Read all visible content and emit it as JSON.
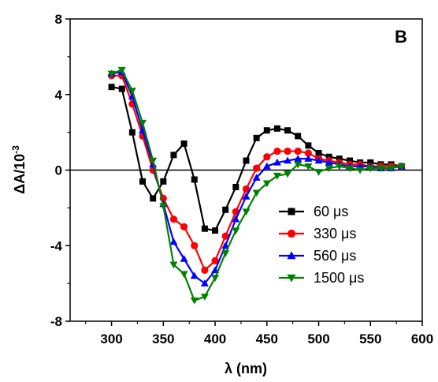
{
  "chart_data": {
    "type": "line",
    "panel_label": "B",
    "xlabel": "λ (nm)",
    "ylabel_main": "ΔA/10",
    "ylabel_exp": "-3",
    "xlim": [
      260,
      600
    ],
    "ylim": [
      -8,
      8
    ],
    "x_ticks": [
      300,
      350,
      400,
      450,
      500,
      550,
      600
    ],
    "y_ticks": [
      -8,
      -4,
      0,
      4,
      8
    ],
    "y_minor_ticks": [
      -6,
      -2,
      2,
      6
    ],
    "x_minor_ticks": [
      275,
      325,
      375,
      425,
      475,
      525,
      575
    ],
    "zero_line": true,
    "legend_position": "bottom-right",
    "x": [
      300,
      310,
      320,
      330,
      340,
      350,
      360,
      370,
      380,
      390,
      400,
      410,
      420,
      430,
      440,
      450,
      460,
      470,
      480,
      490,
      500,
      510,
      520,
      530,
      540,
      550,
      560,
      570,
      580
    ],
    "series": [
      {
        "name": "60 μs",
        "color": "#000000",
        "marker": "square",
        "values": [
          4.4,
          4.3,
          2.0,
          -0.6,
          -1.5,
          -0.6,
          0.8,
          1.4,
          -0.5,
          -3.1,
          -3.2,
          -2.1,
          -0.9,
          0.5,
          1.7,
          2.1,
          2.2,
          2.1,
          1.8,
          1.3,
          0.9,
          0.7,
          0.6,
          0.5,
          0.4,
          0.4,
          0.3,
          0.3,
          0.2
        ]
      },
      {
        "name": "330 μs",
        "color": "#ff0000",
        "marker": "circle",
        "values": [
          5.0,
          5.0,
          3.5,
          1.8,
          0.0,
          -1.5,
          -2.6,
          -3.0,
          -4.0,
          -5.3,
          -4.8,
          -3.5,
          -2.2,
          -1.0,
          0.1,
          0.7,
          1.0,
          1.0,
          1.0,
          0.9,
          0.6,
          0.5,
          0.4,
          0.3,
          0.3,
          0.2,
          0.2,
          0.2,
          0.2
        ]
      },
      {
        "name": "560 μs",
        "color": "#0000ff",
        "marker": "triangle-up",
        "values": [
          5.1,
          5.2,
          3.9,
          2.1,
          0.3,
          -1.8,
          -3.8,
          -4.7,
          -5.6,
          -6.0,
          -5.3,
          -4.0,
          -2.6,
          -1.4,
          -0.4,
          0.2,
          0.4,
          0.5,
          0.6,
          0.6,
          0.5,
          0.4,
          0.3,
          0.2,
          0.2,
          0.2,
          0.1,
          0.1,
          0.2
        ]
      },
      {
        "name": "1500 μs",
        "color": "#008000",
        "marker": "triangle-down",
        "values": [
          5.1,
          5.3,
          4.2,
          2.5,
          0.5,
          -1.9,
          -5.0,
          -5.5,
          -6.9,
          -6.7,
          -5.7,
          -4.4,
          -3.2,
          -2.2,
          -1.2,
          -0.7,
          -0.3,
          -0.2,
          0.3,
          0.2,
          -0.1,
          0.1,
          0.2,
          0.1,
          0.0,
          0.1,
          0.1,
          0.1,
          0.2
        ]
      }
    ]
  }
}
